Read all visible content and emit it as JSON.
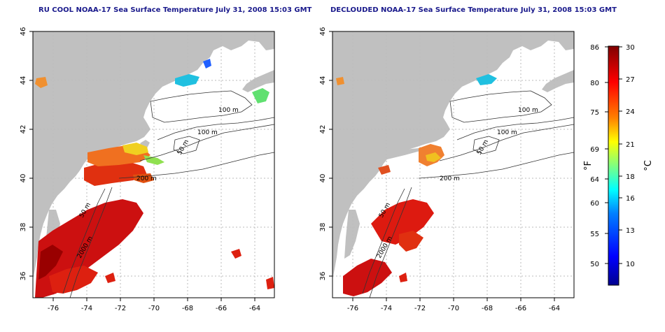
{
  "left_panel": {
    "title": "RU COOL NOAA-17 Sea Surface Temperature July 31, 2008 15:03 GMT",
    "y_ticks": [
      "46",
      "44",
      "42",
      "40",
      "38",
      "36"
    ],
    "x_ticks": [
      "-76",
      "-74",
      "-72",
      "-70",
      "-68",
      "-66",
      "-64"
    ],
    "contour_labels": [
      "100 m",
      "100 m",
      "50 m",
      "200 m",
      "50 m",
      "2000 m"
    ]
  },
  "right_panel": {
    "title": "DECLOUDED NOAA-17 Sea Surface Temperature July 31, 2008 15:03 GMT",
    "y_ticks": [
      "46",
      "44",
      "42",
      "40",
      "38",
      "36"
    ],
    "x_ticks": [
      "-76",
      "-74",
      "-72",
      "-70",
      "-68",
      "-66",
      "-64"
    ],
    "contour_labels": [
      "100 m",
      "100 m",
      "50 m",
      "200 m",
      "50 m",
      "2000 m"
    ]
  },
  "colorbar": {
    "fahrenheit_ticks": [
      "86",
      "80",
      "75",
      "69",
      "64",
      "60",
      "55",
      "50"
    ],
    "celsius_ticks": [
      "30",
      "27",
      "24",
      "21",
      "18",
      "16",
      "13",
      "10"
    ],
    "fahrenheit_label": "°F",
    "celsius_label": "°C",
    "gradient_colors": [
      "#00008f",
      "#0000ff",
      "#0080ff",
      "#00ffff",
      "#80ff80",
      "#ffff00",
      "#ff8000",
      "#ff0000",
      "#800000"
    ]
  },
  "colors": {
    "land": "#c0c0c0",
    "ocean": "#ffffff",
    "contour": "#333333",
    "gridline": "#bbbbbb",
    "title": "#1a1a8c"
  }
}
